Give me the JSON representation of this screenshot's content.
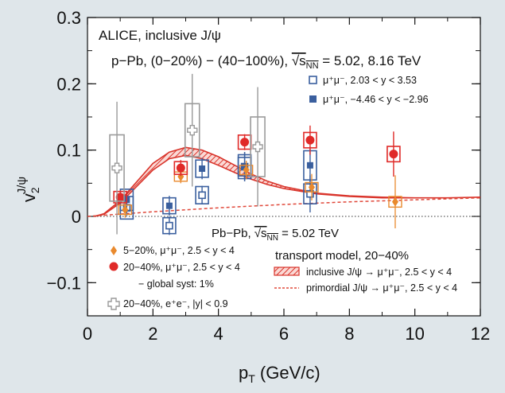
{
  "chart_data": {
    "type": "scatter",
    "xlabel_main": "p",
    "xlabel_sub": "T",
    "xlabel_unit": " (GeV/c)",
    "ylabel_main": "v",
    "ylabel_sub": "2",
    "ylabel_sup": "J/ψ",
    "xlim": [
      0,
      12
    ],
    "ylim": [
      -0.15,
      0.3
    ],
    "x_ticks": [
      0,
      2,
      4,
      6,
      8,
      10,
      12
    ],
    "x_tick_labels": [
      "0",
      "2",
      "4",
      "6",
      "8",
      "10",
      "12"
    ],
    "y_ticks": [
      -0.1,
      0,
      0.1,
      0.2,
      0.3
    ],
    "y_tick_labels": [
      "−0.1",
      "0",
      "0.1",
      "0.2",
      "0.3"
    ],
    "annotations": {
      "line1": "ALICE, inclusive J/ψ",
      "line2_pre": "p−Pb, (0−20%) − (40−100%), ",
      "line2_sqrt": "√s",
      "line2_sub": "NN",
      "line2_post": " = 5.02, 8.16 TeV",
      "pbpb_pre": "Pb−Pb, ",
      "pbpb_sqrt": "√s",
      "pbpb_sub": "NN",
      "pbpb_post": " = 5.02 TeV",
      "global_syst": "− global syst: 1%",
      "transport_model": "transport model, 20−40%"
    },
    "series": [
      {
        "name": "μ⁺μ⁻, 2.03 < y < 3.53",
        "marker": "open-square",
        "color": "#3a5f9e",
        "points": [
          {
            "x": 1.2,
            "y": 0.013,
            "yerr_stat": 0.012,
            "syst_y": 0.017
          },
          {
            "x": 2.5,
            "y": -0.014,
            "yerr_stat": 0.014,
            "syst_y": 0.012
          },
          {
            "x": 3.5,
            "y": 0.032,
            "yerr_stat": 0.014,
            "syst_y": 0.013
          },
          {
            "x": 4.8,
            "y": 0.075,
            "yerr_stat": 0.022,
            "syst_y": 0.014
          },
          {
            "x": 6.8,
            "y": 0.034,
            "yerr_stat": 0.028,
            "syst_y": 0.015
          }
        ]
      },
      {
        "name": "μ⁺μ⁻, −4.46 < y < −2.96",
        "marker": "filled-square",
        "color": "#3a5f9e",
        "points": [
          {
            "x": 1.2,
            "y": 0.025,
            "yerr_stat": 0.012,
            "syst_y": 0.016
          },
          {
            "x": 2.5,
            "y": 0.016,
            "yerr_stat": 0.015,
            "syst_y": 0.012
          },
          {
            "x": 3.5,
            "y": 0.072,
            "yerr_stat": 0.016,
            "syst_y": 0.013
          },
          {
            "x": 4.8,
            "y": 0.075,
            "yerr_stat": 0.022,
            "syst_y": 0.018
          },
          {
            "x": 6.8,
            "y": 0.077,
            "yerr_stat": 0.028,
            "syst_y": 0.022
          }
        ]
      },
      {
        "name": "5−20%, μ⁺μ⁻, 2.5 < y < 4",
        "marker": "filled-diamond",
        "color": "#e98a2e",
        "points": [
          {
            "x": 1.15,
            "y": 0.01,
            "yerr_stat": 0.012,
            "syst_y": 0.007
          },
          {
            "x": 2.85,
            "y": 0.06,
            "yerr_stat": 0.01,
            "syst_y": 0.007
          },
          {
            "x": 4.85,
            "y": 0.07,
            "yerr_stat": 0.014,
            "syst_y": 0.007
          },
          {
            "x": 6.85,
            "y": 0.044,
            "yerr_stat": 0.02,
            "syst_y": 0.007
          },
          {
            "x": 9.4,
            "y": 0.022,
            "yerr_stat": 0.04,
            "syst_y": 0.008
          }
        ]
      },
      {
        "name": "20−40%, μ⁺μ⁻, 2.5 < y < 4",
        "marker": "filled-circle",
        "color": "#e02a28",
        "points": [
          {
            "x": 1.0,
            "y": 0.029,
            "yerr_stat": 0.01,
            "syst_y": 0.005
          },
          {
            "x": 2.85,
            "y": 0.073,
            "yerr_stat": 0.012,
            "syst_y": 0.006
          },
          {
            "x": 4.8,
            "y": 0.112,
            "yerr_stat": 0.012,
            "syst_y": 0.007
          },
          {
            "x": 6.8,
            "y": 0.115,
            "yerr_stat": 0.022,
            "syst_y": 0.008
          },
          {
            "x": 9.35,
            "y": 0.094,
            "yerr_stat": 0.034,
            "syst_y": 0.008
          }
        ]
      },
      {
        "name": "20−40%, e⁺e⁻, |y| < 0.9",
        "marker": "open-cross",
        "color": "#9a9a9a",
        "points": [
          {
            "x": 0.9,
            "y": 0.073,
            "yerr_stat": 0.1,
            "syst_y": 0.05
          },
          {
            "x": 3.2,
            "y": 0.13,
            "yerr_stat": 0.085,
            "syst_y": 0.04
          },
          {
            "x": 5.2,
            "y": 0.105,
            "yerr_stat": 0.09,
            "syst_y": 0.045
          }
        ]
      }
    ],
    "models": [
      {
        "name": "inclusive J/ψ → μ⁺μ⁻, 2.5 < y < 4",
        "style": "hatched-band",
        "color": "#d9342b",
        "lower": [
          [
            0.2,
            0.0
          ],
          [
            0.5,
            0.003
          ],
          [
            1.0,
            0.02
          ],
          [
            1.5,
            0.045
          ],
          [
            2.0,
            0.07
          ],
          [
            2.5,
            0.087
          ],
          [
            3.0,
            0.092
          ],
          [
            3.5,
            0.087
          ],
          [
            4.0,
            0.077
          ],
          [
            4.5,
            0.066
          ],
          [
            5.0,
            0.056
          ],
          [
            5.5,
            0.048
          ],
          [
            6.0,
            0.042
          ],
          [
            7.0,
            0.034
          ],
          [
            8.0,
            0.03
          ],
          [
            9.0,
            0.028
          ],
          [
            10.0,
            0.028
          ],
          [
            11.0,
            0.028
          ],
          [
            12.0,
            0.029
          ]
        ],
        "upper": [
          [
            0.2,
            0.0
          ],
          [
            0.5,
            0.004
          ],
          [
            1.0,
            0.024
          ],
          [
            1.5,
            0.052
          ],
          [
            2.0,
            0.08
          ],
          [
            2.5,
            0.097
          ],
          [
            3.0,
            0.104
          ],
          [
            3.5,
            0.1
          ],
          [
            4.0,
            0.09
          ],
          [
            4.5,
            0.077
          ],
          [
            5.0,
            0.064
          ],
          [
            5.5,
            0.053
          ],
          [
            6.0,
            0.045
          ],
          [
            7.0,
            0.035
          ],
          [
            8.0,
            0.031
          ],
          [
            9.0,
            0.029
          ],
          [
            10.0,
            0.028
          ],
          [
            11.0,
            0.028
          ],
          [
            12.0,
            0.029
          ]
        ]
      },
      {
        "name": "primordial J/ψ → μ⁺μ⁻, 2.5 < y < 4",
        "style": "dashed",
        "color": "#e0483a",
        "points": [
          [
            0,
            0.0
          ],
          [
            2,
            0.007
          ],
          [
            4,
            0.013
          ],
          [
            6,
            0.018
          ],
          [
            8,
            0.022
          ],
          [
            10,
            0.025
          ],
          [
            12,
            0.028
          ]
        ]
      }
    ],
    "zero_line": {
      "style": "dotted",
      "color": "#333333"
    },
    "grid": false,
    "legends": {
      "pPb": "top-right",
      "PbPb_data": "bottom-left",
      "transport_model": "bottom-right"
    }
  }
}
